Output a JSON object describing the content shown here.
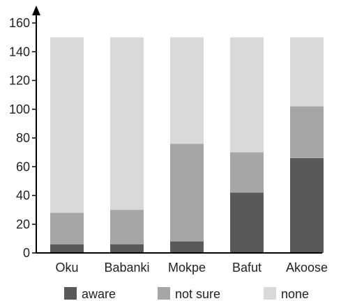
{
  "chart_data": {
    "type": "bar",
    "stacked": true,
    "categories": [
      "Oku",
      "Babanki",
      "Mokpe",
      "Bafut",
      "Akoose"
    ],
    "series": [
      {
        "name": "aware",
        "values": [
          6,
          6,
          8,
          42,
          66
        ],
        "color": "#595959"
      },
      {
        "name": "not sure",
        "values": [
          22,
          24,
          68,
          28,
          36
        ],
        "color": "#a6a6a6"
      },
      {
        "name": "none",
        "values": [
          122,
          120,
          74,
          80,
          48
        ],
        "color": "#d9d9d9"
      }
    ],
    "ylim": [
      0,
      160
    ],
    "yticks": [
      "0",
      "20",
      "40",
      "60",
      "80",
      "100",
      "120",
      "140",
      "160"
    ],
    "grid": false,
    "legend": "bottom"
  }
}
